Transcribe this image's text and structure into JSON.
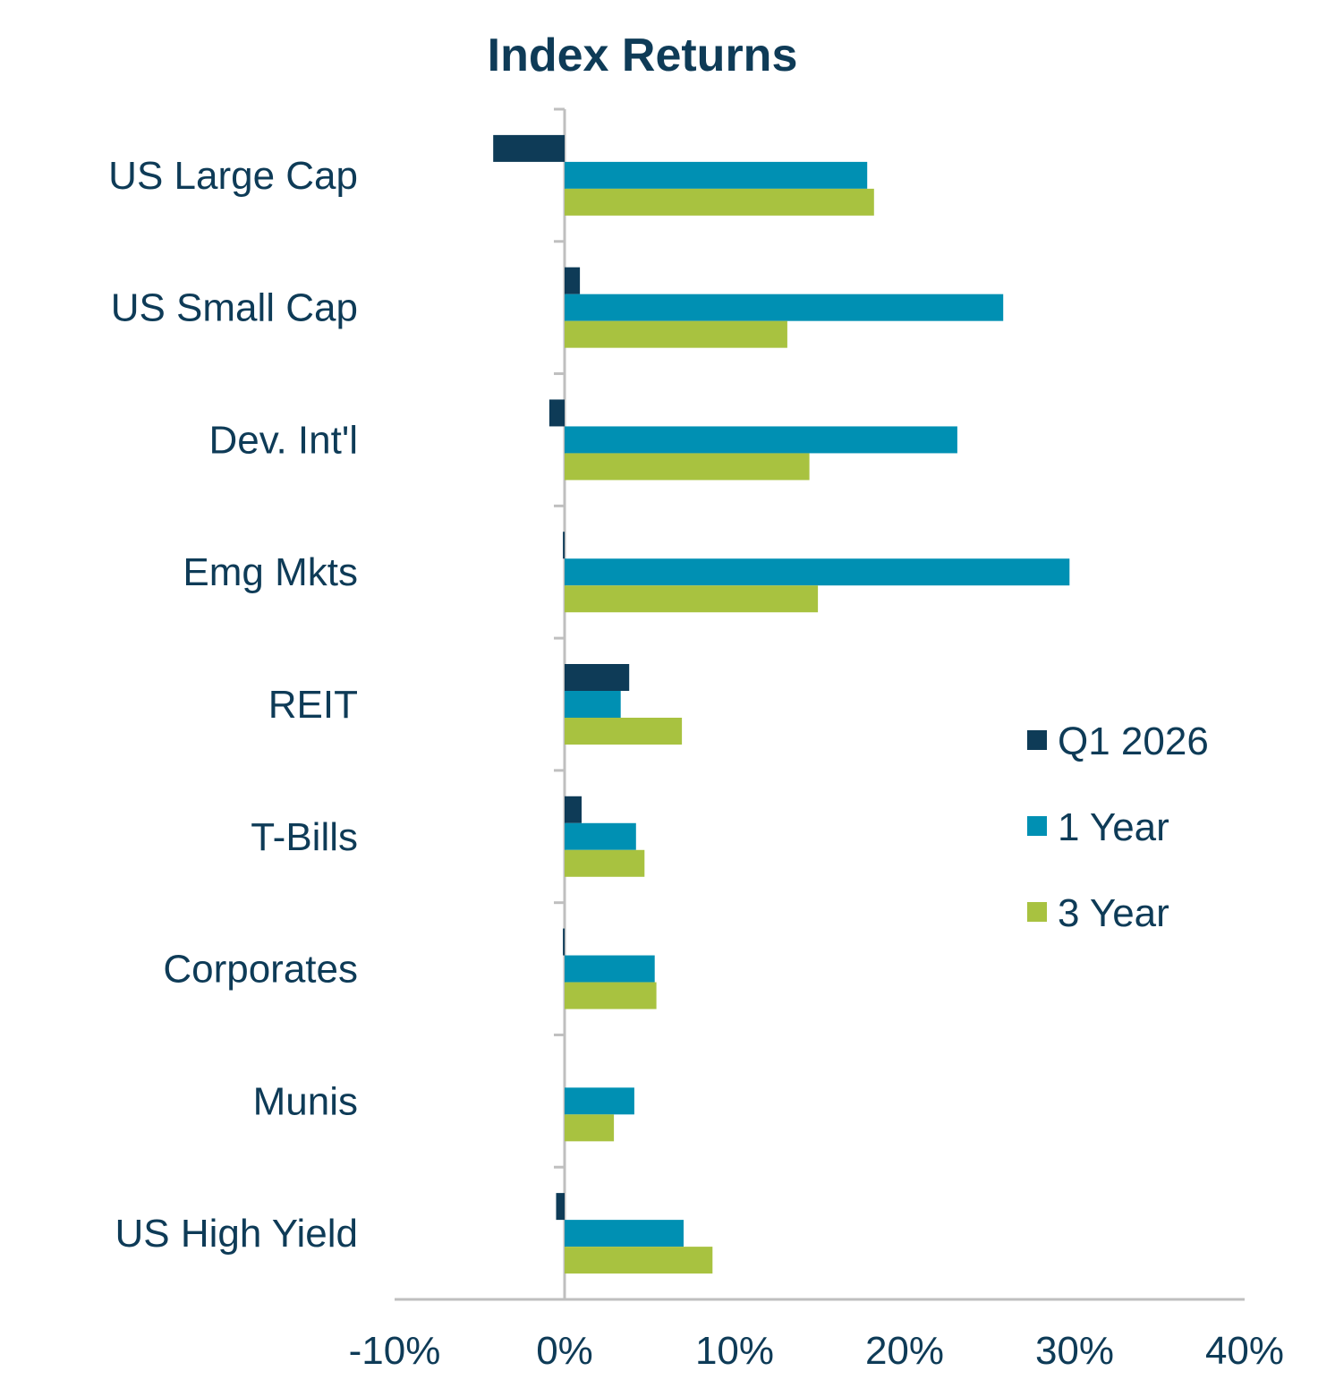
{
  "chart_data": {
    "type": "bar",
    "orientation": "horizontal",
    "title": "Index Returns",
    "categories": [
      "US Large Cap",
      "US Small Cap",
      "Dev. Int'l",
      "Emg Mkts",
      "REIT",
      "T-Bills",
      "Corporates",
      "Munis",
      "US High Yield"
    ],
    "series": [
      {
        "name": "Q1 2026",
        "color": "#0e3b57",
        "values": [
          -4.2,
          0.9,
          -0.9,
          -0.1,
          3.8,
          1.0,
          -0.1,
          0.0,
          -0.5
        ]
      },
      {
        "name": "1 Year",
        "color": "#0090b3",
        "values": [
          17.8,
          25.8,
          23.1,
          29.7,
          3.3,
          4.2,
          5.3,
          4.1,
          7.0
        ]
      },
      {
        "name": "3 Year",
        "color": "#a8c240",
        "values": [
          18.2,
          13.1,
          14.4,
          14.9,
          6.9,
          4.7,
          5.4,
          2.9,
          8.7
        ]
      }
    ],
    "xlim": [
      -10,
      40
    ],
    "xticks": [
      "-10%",
      "0%",
      "10%",
      "20%",
      "30%",
      "40%"
    ],
    "xtick_values": [
      -10,
      0,
      10,
      20,
      30,
      40
    ],
    "grid": false,
    "legend_position": "right"
  }
}
